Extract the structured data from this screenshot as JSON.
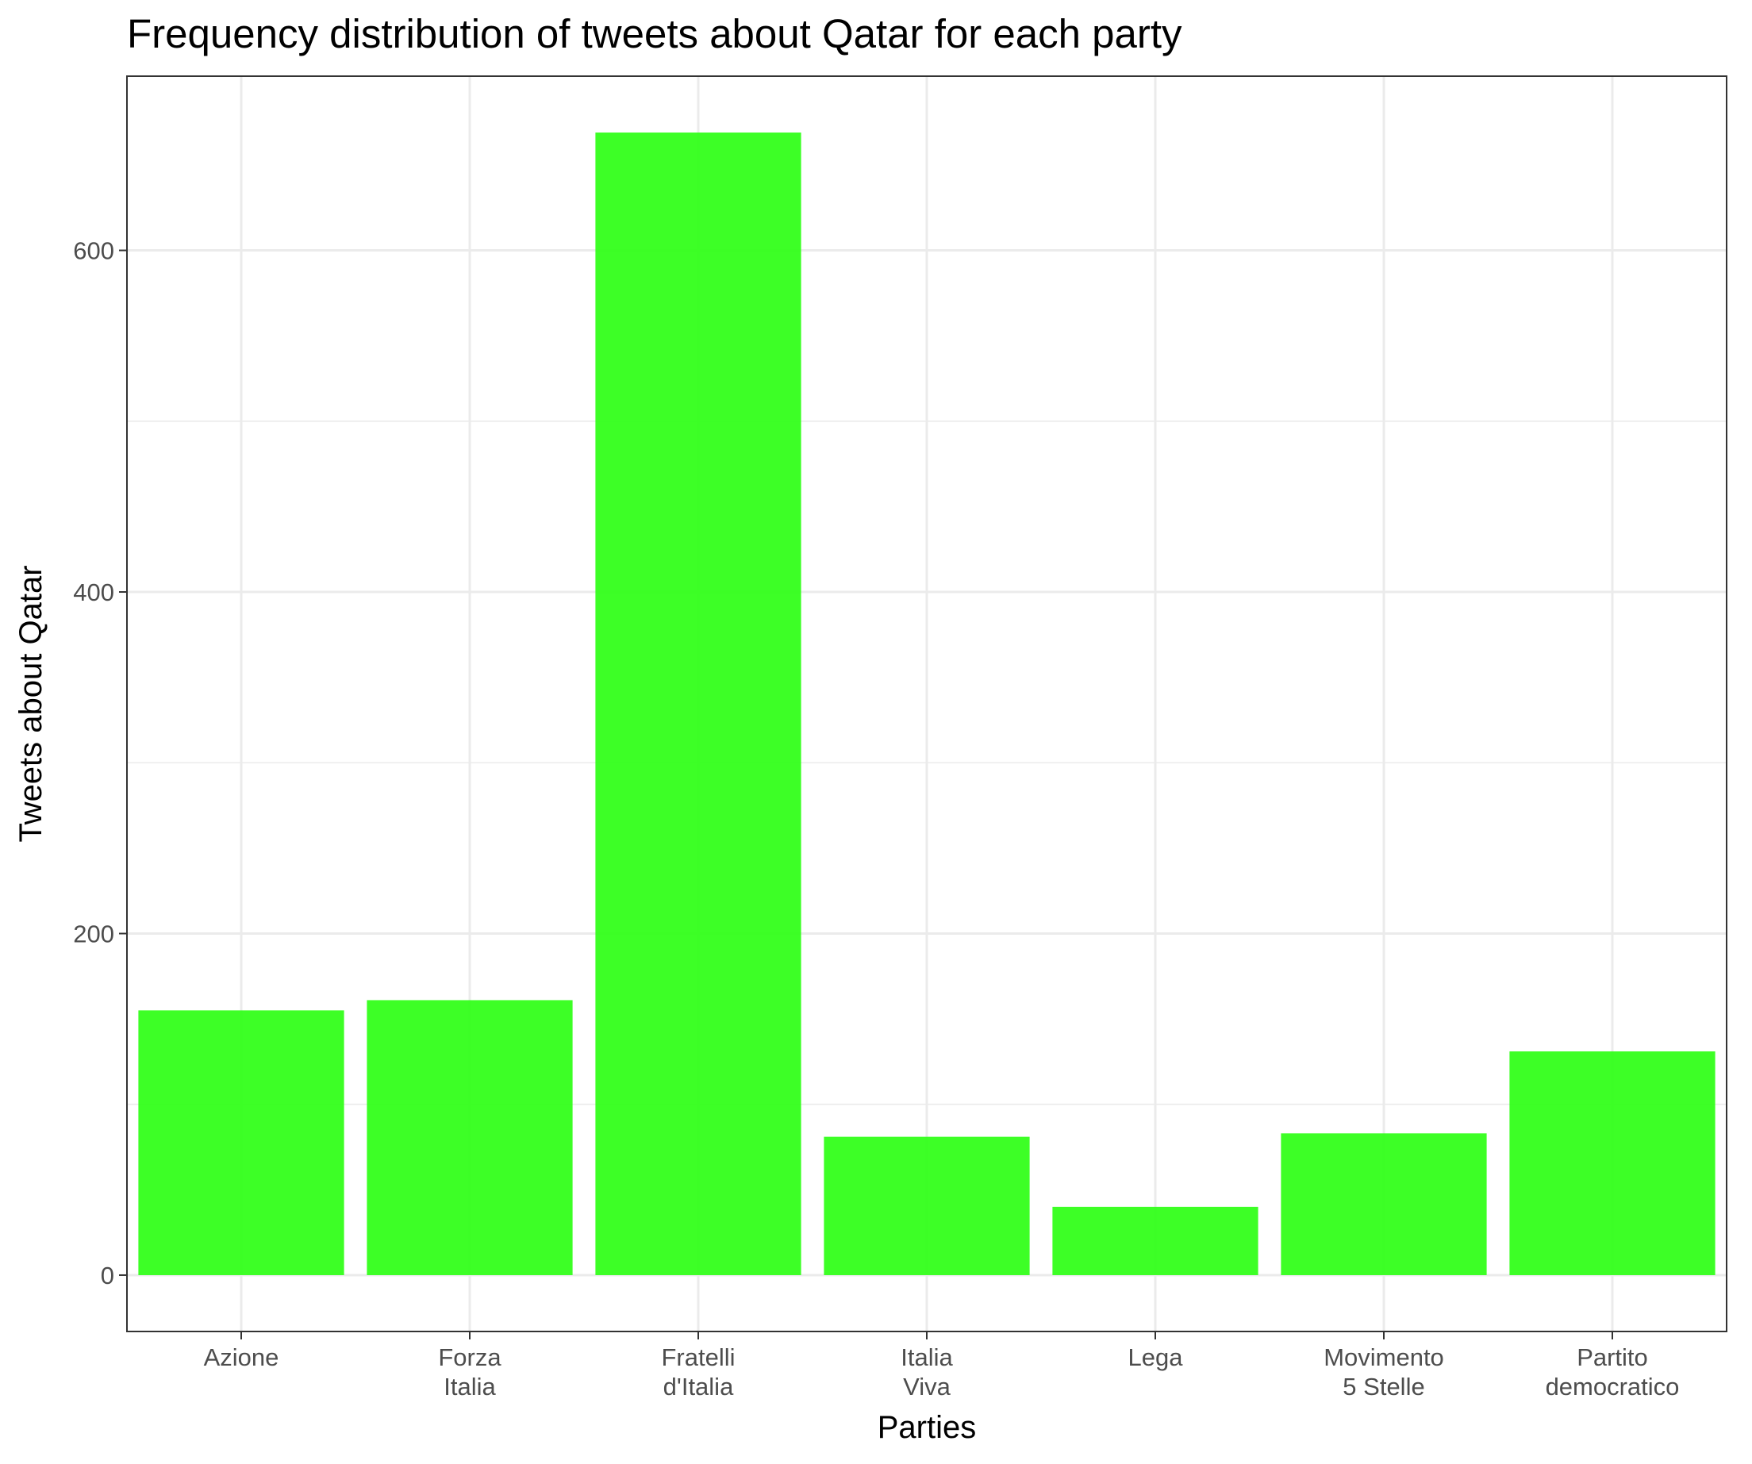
{
  "chart_data": {
    "type": "bar",
    "title": "Frequency distribution of tweets about Qatar for each party",
    "xlabel": "Parties",
    "ylabel": "Tweets about Qatar",
    "categories": [
      [
        "Azione"
      ],
      [
        "Forza",
        "Italia"
      ],
      [
        "Fratelli",
        "d'Italia"
      ],
      [
        "Italia",
        "Viva"
      ],
      [
        "Lega"
      ],
      [
        "Movimento",
        "5 Stelle"
      ],
      [
        "Partito",
        "democratico"
      ]
    ],
    "values": [
      155,
      161,
      669,
      81,
      40,
      83,
      131
    ],
    "ylim": [
      -33,
      702
    ],
    "yticks": [
      0,
      200,
      400,
      600
    ],
    "minor_yticks": [
      100,
      300,
      500
    ],
    "bar_color": "#33ff1a",
    "grid": true,
    "legend": "none"
  }
}
